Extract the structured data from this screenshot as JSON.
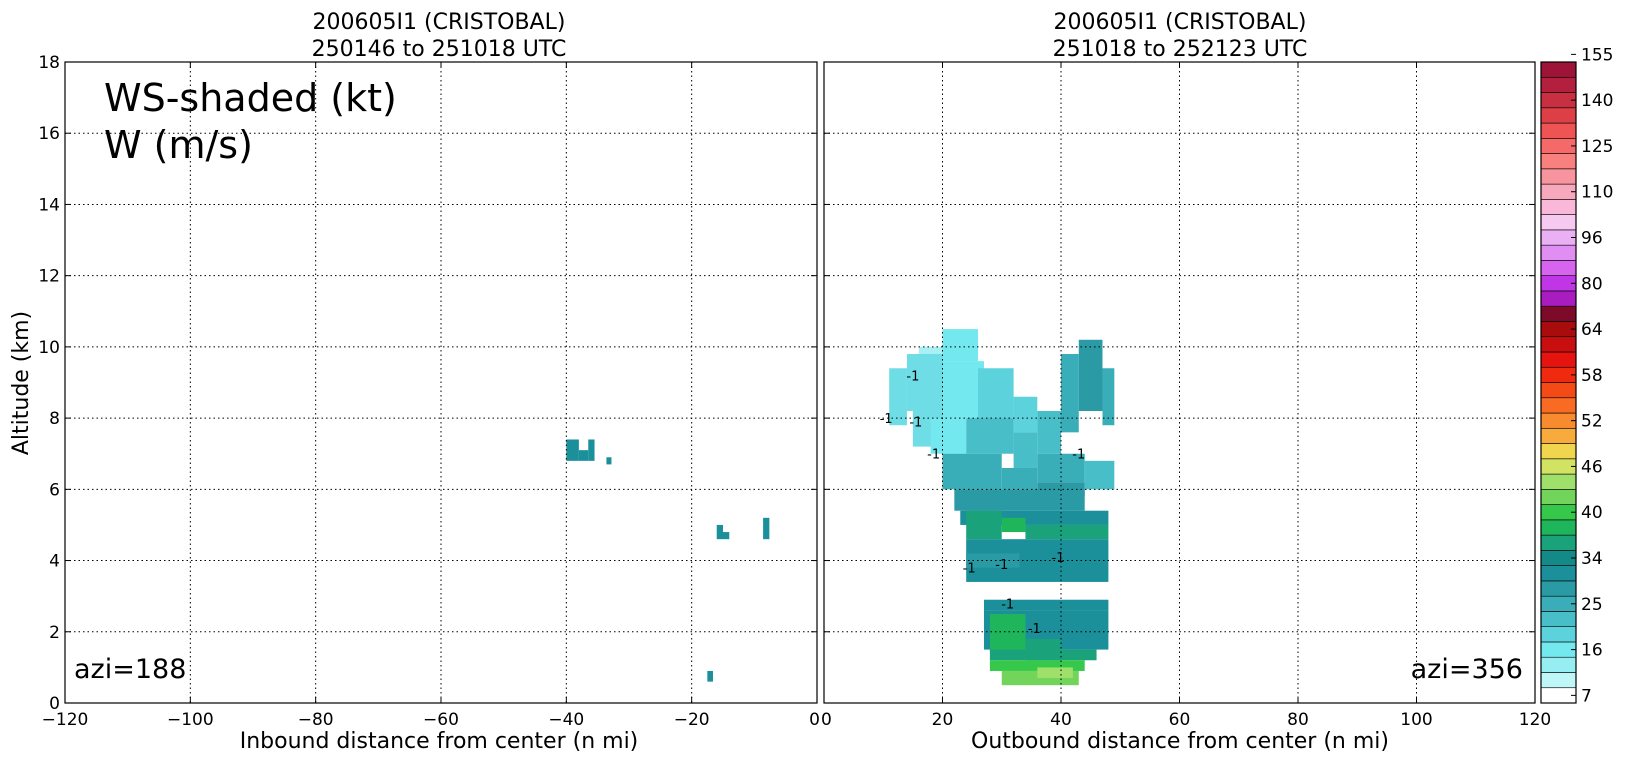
{
  "chart_data": [
    {
      "type": "heatmap",
      "title": "200605I1 (CRISTOBAL)",
      "subtitle": "250146 to 251018 UTC",
      "xlabel": "Inbound distance from center (n mi)",
      "ylabel": "Altitude (km)",
      "xlim": [
        -120,
        0
      ],
      "ylim": [
        0,
        18
      ],
      "xticks": [
        "−120",
        "−100",
        "−80",
        "−60",
        "−40",
        "−20",
        "0"
      ],
      "yticks": [
        "0",
        "2",
        "4",
        "6",
        "8",
        "10",
        "12",
        "14",
        "16",
        "18"
      ],
      "grid": true,
      "legend_line1": "WS-shaded (kt)",
      "legend_line2": "W (m/s)",
      "annotation": "azi=188",
      "cells": [
        {
          "x0": -40,
          "x1": -38,
          "y0": 6.8,
          "y1": 7.4,
          "color": "#1b8f9a"
        },
        {
          "x0": -38,
          "x1": -36.5,
          "y0": 6.8,
          "y1": 7.1,
          "color": "#1b8f9a"
        },
        {
          "x0": -36.5,
          "x1": -35.5,
          "y0": 6.8,
          "y1": 7.4,
          "color": "#1b8f9a"
        },
        {
          "x0": -33.6,
          "x1": -32.8,
          "y0": 6.7,
          "y1": 6.9,
          "color": "#1b8f9a"
        },
        {
          "x0": -16,
          "x1": -15,
          "y0": 4.6,
          "y1": 5.0,
          "color": "#1b8f9a"
        },
        {
          "x0": -15,
          "x1": -14,
          "y0": 4.6,
          "y1": 4.8,
          "color": "#1b8f9a"
        },
        {
          "x0": -8.6,
          "x1": -7.6,
          "y0": 4.6,
          "y1": 5.2,
          "color": "#1b8f9a"
        },
        {
          "x0": -17.5,
          "x1": -16.6,
          "y0": 0.6,
          "y1": 0.9,
          "color": "#1b8f9a"
        }
      ]
    },
    {
      "type": "heatmap",
      "title": "200605I1 (CRISTOBAL)",
      "subtitle": "251018 to 252123 UTC",
      "xlabel": "Outbound distance from center (n mi)",
      "xlim": [
        0,
        120
      ],
      "ylim": [
        0,
        18
      ],
      "xticks": [
        "0",
        "20",
        "40",
        "60",
        "80",
        "100",
        "120"
      ],
      "grid": true,
      "annotation": "azi=356",
      "contour_labels": [
        {
          "x": 15,
          "y": 9.2,
          "text": "-1"
        },
        {
          "x": 10.5,
          "y": 8.0,
          "text": "-1"
        },
        {
          "x": 15.5,
          "y": 7.9,
          "text": "-1"
        },
        {
          "x": 18.5,
          "y": 7.0,
          "text": "-1"
        },
        {
          "x": 43,
          "y": 7.0,
          "text": "-1"
        },
        {
          "x": 24.5,
          "y": 3.8,
          "text": "-1"
        },
        {
          "x": 30,
          "y": 3.9,
          "text": "-1"
        },
        {
          "x": 39.5,
          "y": 4.1,
          "text": "-1"
        },
        {
          "x": 31,
          "y": 2.8,
          "text": "-1"
        },
        {
          "x": 35.5,
          "y": 2.1,
          "text": "-1"
        }
      ],
      "cells": [
        {
          "x0": 11,
          "x1": 14,
          "y0": 7.8,
          "y1": 9.4,
          "color": "#6fdde6"
        },
        {
          "x0": 14,
          "x1": 20,
          "y0": 8.2,
          "y1": 9.8,
          "color": "#6fdde6"
        },
        {
          "x0": 15,
          "x1": 20,
          "y0": 7.2,
          "y1": 8.2,
          "color": "#6fdde6"
        },
        {
          "x0": 16,
          "x1": 21,
          "y0": 9.8,
          "y1": 10.0,
          "color": "#a8f0f4"
        },
        {
          "x0": 20,
          "x1": 26,
          "y0": 9.6,
          "y1": 10.5,
          "color": "#73e8ef"
        },
        {
          "x0": 20,
          "x1": 27,
          "y0": 8.0,
          "y1": 9.6,
          "color": "#73e8ef"
        },
        {
          "x0": 26,
          "x1": 32,
          "y0": 8.0,
          "y1": 9.4,
          "color": "#5cd2dc"
        },
        {
          "x0": 32,
          "x1": 36,
          "y0": 7.6,
          "y1": 8.6,
          "color": "#5cd2dc"
        },
        {
          "x0": 36,
          "x1": 40,
          "y0": 7.0,
          "y1": 8.2,
          "color": "#48bfc8"
        },
        {
          "x0": 40,
          "x1": 43,
          "y0": 7.6,
          "y1": 9.8,
          "color": "#3aaeb8"
        },
        {
          "x0": 43,
          "x1": 47,
          "y0": 8.2,
          "y1": 10.2,
          "color": "#2a9aa5"
        },
        {
          "x0": 47,
          "x1": 49,
          "y0": 7.8,
          "y1": 9.4,
          "color": "#3aaeb8"
        },
        {
          "x0": 18,
          "x1": 24,
          "y0": 7.0,
          "y1": 8.0,
          "color": "#73e8ef"
        },
        {
          "x0": 24,
          "x1": 32,
          "y0": 7.0,
          "y1": 8.0,
          "color": "#48bfc8"
        },
        {
          "x0": 32,
          "x1": 36,
          "y0": 6.6,
          "y1": 7.6,
          "color": "#48bfc8"
        },
        {
          "x0": 36,
          "x1": 44,
          "y0": 6.2,
          "y1": 7.0,
          "color": "#3aaeb8"
        },
        {
          "x0": 44,
          "x1": 49,
          "y0": 6.0,
          "y1": 6.8,
          "color": "#48bfc8"
        },
        {
          "x0": 20,
          "x1": 30,
          "y0": 6.0,
          "y1": 7.0,
          "color": "#3aaeb8"
        },
        {
          "x0": 30,
          "x1": 36,
          "y0": 6.0,
          "y1": 6.6,
          "color": "#3aaeb8"
        },
        {
          "x0": 36,
          "x1": 44,
          "y0": 5.8,
          "y1": 6.2,
          "color": "#2a9aa5"
        },
        {
          "x0": 22,
          "x1": 44,
          "y0": 5.4,
          "y1": 6.0,
          "color": "#2a9aa5"
        },
        {
          "x0": 23,
          "x1": 48,
          "y0": 5.0,
          "y1": 5.4,
          "color": "#1b8f9a"
        },
        {
          "x0": 24,
          "x1": 30,
          "y0": 4.6,
          "y1": 5.4,
          "color": "#1aa37a"
        },
        {
          "x0": 30,
          "x1": 34,
          "y0": 4.8,
          "y1": 5.2,
          "color": "#1fb55a"
        },
        {
          "x0": 34,
          "x1": 48,
          "y0": 4.6,
          "y1": 5.0,
          "color": "#1aa37a"
        },
        {
          "x0": 24,
          "x1": 48,
          "y0": 3.4,
          "y1": 4.6,
          "color": "#1b8f9a"
        },
        {
          "x0": 24,
          "x1": 33,
          "y0": 3.8,
          "y1": 4.2,
          "color": "#2a9aa5"
        },
        {
          "x0": 27,
          "x1": 48,
          "y0": 2.6,
          "y1": 2.9,
          "color": "#1b8f9a"
        },
        {
          "x0": 27,
          "x1": 48,
          "y0": 1.5,
          "y1": 2.6,
          "color": "#1b8f9a"
        },
        {
          "x0": 28,
          "x1": 34,
          "y0": 1.4,
          "y1": 2.5,
          "color": "#1fb55a"
        },
        {
          "x0": 34,
          "x1": 40,
          "y0": 1.2,
          "y1": 1.8,
          "color": "#1aa37a"
        },
        {
          "x0": 28,
          "x1": 46,
          "y0": 1.2,
          "y1": 1.5,
          "color": "#1aa37a"
        },
        {
          "x0": 28,
          "x1": 44,
          "y0": 0.9,
          "y1": 1.2,
          "color": "#35c84a"
        },
        {
          "x0": 30,
          "x1": 43,
          "y0": 0.5,
          "y1": 0.9,
          "color": "#72d45a"
        },
        {
          "x0": 36,
          "x1": 42,
          "y0": 0.7,
          "y1": 1.0,
          "color": "#9ee06a"
        }
      ]
    }
  ],
  "colorbar": {
    "colors": [
      "#ffffff",
      "#bff6f7",
      "#96eef2",
      "#73e8ef",
      "#5cd2dc",
      "#48bfc8",
      "#3aaeb8",
      "#2a9aa5",
      "#1b8f9a",
      "#138a88",
      "#1aa37a",
      "#1fb55a",
      "#35c84a",
      "#72d45a",
      "#9ee06a",
      "#d2e262",
      "#f0d64e",
      "#f6ab3c",
      "#f88a30",
      "#f96a22",
      "#f44a16",
      "#f02a0e",
      "#e6140e",
      "#c80e0e",
      "#a80c0c",
      "#7c0a28",
      "#a81cc0",
      "#c036e6",
      "#d664ee",
      "#e08ef2",
      "#ebb0f4",
      "#f6caf0",
      "#f9b8d8",
      "#f8a8bc",
      "#f8949e",
      "#f8807e",
      "#f56a68",
      "#ee5454",
      "#dc4046",
      "#c83042",
      "#b2203e",
      "#9e1438"
    ],
    "labels": [
      "7",
      "16",
      "25",
      "34",
      "40",
      "46",
      "52",
      "58",
      "64",
      "80",
      "96",
      "110",
      "125",
      "140",
      "155"
    ]
  }
}
